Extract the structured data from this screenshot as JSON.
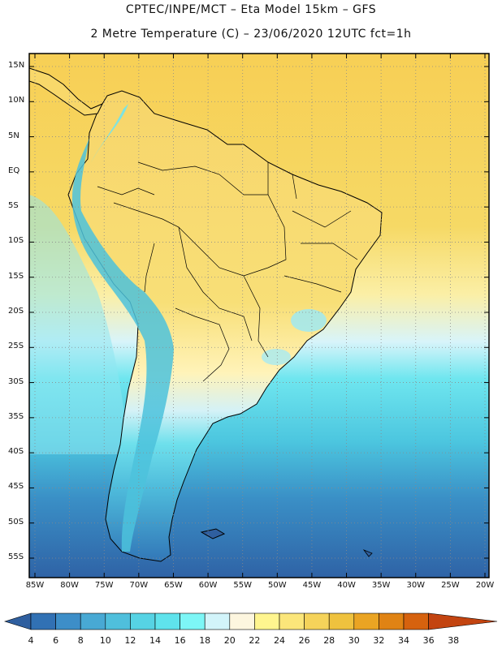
{
  "header": {
    "line1": "CPTEC/INPE/MCT –  Eta Model 15km – GFS",
    "line2": "2 Metre Temperature (C) – 23/06/2020 12UTC fct=1h"
  },
  "map": {
    "lat_labels": [
      "15N",
      "10N",
      "5N",
      "EQ",
      "5S",
      "10S",
      "15S",
      "20S",
      "25S",
      "30S",
      "35S",
      "40S",
      "45S",
      "50S",
      "55S"
    ],
    "lat_values": [
      15,
      10,
      5,
      0,
      -5,
      -10,
      -15,
      -20,
      -25,
      -30,
      -35,
      -40,
      -45,
      -50,
      -55
    ],
    "lon_labels": [
      "85W",
      "80W",
      "75W",
      "70W",
      "65W",
      "60W",
      "55W",
      "50W",
      "45W",
      "40W",
      "35W",
      "30W",
      "25W",
      "20W"
    ],
    "lon_values": [
      -85,
      -80,
      -75,
      -70,
      -65,
      -60,
      -55,
      -50,
      -45,
      -40,
      -35,
      -30,
      -25,
      -20
    ]
  },
  "colorbar": {
    "labels": [
      "4",
      "6",
      "8",
      "10",
      "12",
      "14",
      "16",
      "18",
      "20",
      "22",
      "24",
      "26",
      "28",
      "30",
      "32",
      "34",
      "36",
      "38"
    ],
    "colors": [
      "#2f5f9f",
      "#3171b4",
      "#3d8ec8",
      "#48a9d4",
      "#4fbfdc",
      "#56d3e4",
      "#5fe3ec",
      "#7df6f6",
      "#d2f4fa",
      "#fdf6df",
      "#fff58f",
      "#fbe67a",
      "#f5d35a",
      "#efc23e",
      "#eaa423",
      "#e08314",
      "#d6620e",
      "#c34410"
    ]
  },
  "colors": {
    "frame": "#000000",
    "grid": "#8a8a8a",
    "coast": "#000000"
  }
}
